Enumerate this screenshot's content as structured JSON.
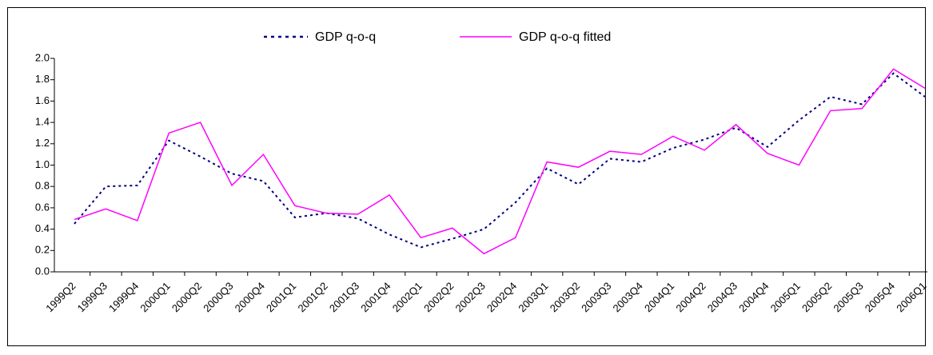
{
  "chart_data": {
    "type": "line",
    "categories": [
      "1999Q2",
      "1999Q3",
      "1999Q4",
      "2000Q1",
      "2000Q2",
      "2000Q3",
      "2000Q4",
      "2001Q1",
      "2001Q2",
      "2001Q3",
      "2001Q4",
      "2002Q1",
      "2002Q2",
      "2002Q3",
      "2002Q4",
      "2003Q1",
      "2003Q2",
      "2003Q3",
      "2003Q4",
      "2004Q1",
      "2004Q2",
      "2004Q3",
      "2004Q4",
      "2005Q1",
      "2005Q2",
      "2005Q3",
      "2005Q4",
      "2006Q1"
    ],
    "series": [
      {
        "name": "GDP q-o-q",
        "color": "#000080",
        "dash": true,
        "values": [
          0.45,
          0.8,
          0.81,
          1.23,
          1.08,
          0.92,
          0.85,
          0.51,
          0.55,
          0.5,
          0.35,
          0.23,
          0.31,
          0.4,
          0.65,
          0.97,
          0.82,
          1.06,
          1.03,
          1.16,
          1.24,
          1.35,
          1.17,
          1.42,
          1.64,
          1.57,
          1.86,
          1.64
        ]
      },
      {
        "name": "GDP q-o-q fitted",
        "color": "#ff00ff",
        "dash": false,
        "values": [
          0.49,
          0.59,
          0.48,
          1.3,
          1.4,
          0.81,
          1.1,
          0.62,
          0.55,
          0.54,
          0.72,
          0.32,
          0.41,
          0.17,
          0.32,
          1.03,
          0.98,
          1.13,
          1.1,
          1.27,
          1.14,
          1.38,
          1.11,
          1.0,
          1.51,
          1.53,
          1.9,
          1.72
        ]
      }
    ],
    "ylim": [
      0,
      2
    ],
    "yticks": [
      {
        "value": 0,
        "label": "0.0"
      },
      0.2,
      0.4,
      0.6,
      0.8,
      {
        "value": 1,
        "label": "1.0"
      },
      1.2,
      1.4,
      1.6,
      1.8,
      {
        "value": 2,
        "label": "2.0"
      }
    ],
    "legend": "top"
  }
}
